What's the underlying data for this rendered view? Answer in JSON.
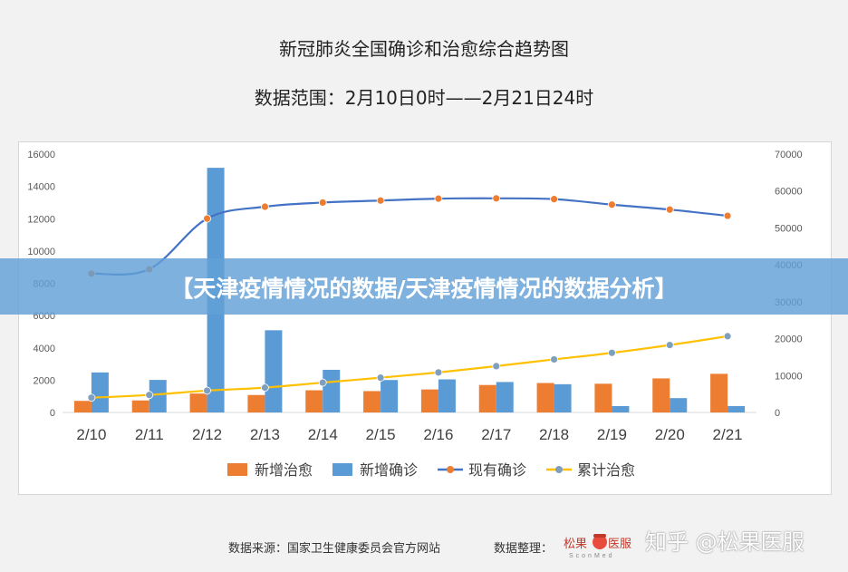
{
  "chart_data": {
    "type": "bar+line",
    "title": "新冠肺炎全国确诊和治愈综合趋势图",
    "subtitle": "数据范围：2月10日0时——2月21日24时",
    "categories": [
      "2/10",
      "2/11",
      "2/12",
      "2/13",
      "2/14",
      "2/15",
      "2/16",
      "2/17",
      "2/18",
      "2/19",
      "2/20",
      "2/21"
    ],
    "y_left": {
      "ylim": [
        0,
        16000
      ],
      "ticks": [
        0,
        2000,
        4000,
        6000,
        8000,
        10000,
        12000,
        14000,
        16000
      ]
    },
    "y_right": {
      "ylim": [
        0,
        70000
      ],
      "ticks": [
        0,
        10000,
        20000,
        30000,
        40000,
        50000,
        60000,
        70000
      ]
    },
    "series": [
      {
        "name": "新增治愈",
        "type": "bar",
        "axis": "left",
        "color": "#ed7d31",
        "values": [
          716,
          744,
          1171,
          1081,
          1373,
          1323,
          1425,
          1701,
          1824,
          1779,
          2109,
          2393
        ]
      },
      {
        "name": "新增确诊",
        "type": "bar",
        "axis": "left",
        "color": "#5b9bd5",
        "values": [
          2478,
          2015,
          15152,
          5090,
          2641,
          2009,
          2048,
          1886,
          1749,
          394,
          889,
          397
        ]
      },
      {
        "name": "现有确诊",
        "type": "line",
        "axis": "right",
        "color": "#4472c4",
        "marker_color": "#ed7d31",
        "values": [
          37626,
          38800,
          52526,
          55748,
          56873,
          57416,
          57934,
          58016,
          57805,
          56303,
          54965,
          53284
        ]
      },
      {
        "name": "累计治愈",
        "type": "line",
        "axis": "right",
        "color": "#ffc000",
        "marker_color": "#7f9fbf",
        "values": [
          3996,
          4740,
          5911,
          6723,
          8096,
          9419,
          10844,
          12552,
          14376,
          16155,
          18264,
          20659
        ]
      }
    ],
    "legend_position": "bottom",
    "grid": false
  },
  "banner": {
    "text": "【天津疫情情况的数据/天津疫情情况的数据分析】"
  },
  "footer": {
    "source": "数据来源：国家卫生健康委员会官方网站",
    "compiler": "数据整理：",
    "logo_text": "松果医服",
    "logo_subtext": "SconMed"
  },
  "watermark": {
    "text": "知乎 @松果医服"
  }
}
